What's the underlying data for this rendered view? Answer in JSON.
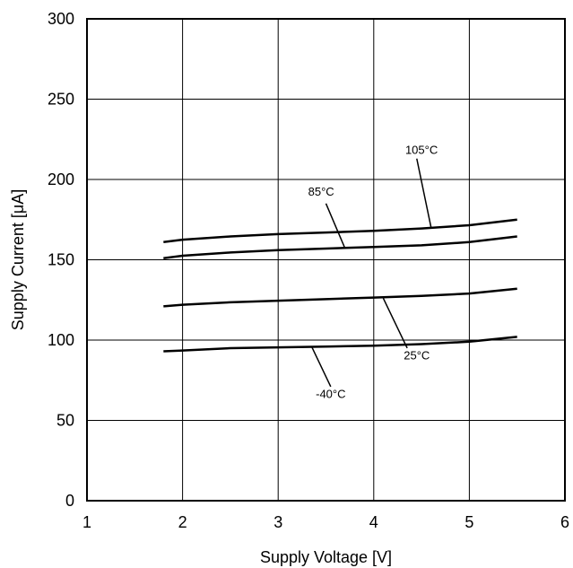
{
  "chart_data": {
    "type": "line",
    "title": "",
    "xlabel": "Supply Voltage [V]",
    "ylabel": "Supply Current [μA]",
    "xlim": [
      1,
      6
    ],
    "ylim": [
      0,
      300
    ],
    "xticks": [
      1,
      2,
      3,
      4,
      5,
      6
    ],
    "yticks": [
      0,
      50,
      100,
      150,
      200,
      250,
      300
    ],
    "xtick_labels": [
      "1",
      "2",
      "3",
      "4",
      "5",
      "6"
    ],
    "ytick_labels": [
      "0",
      "50",
      "100",
      "150",
      "200",
      "250",
      "300"
    ],
    "grid": true,
    "legend": "none (series labeled inline with leader lines)",
    "series": [
      {
        "name": "105°C",
        "x": [
          1.8,
          2.0,
          2.5,
          3.0,
          3.5,
          4.0,
          4.5,
          5.0,
          5.5
        ],
        "y": [
          161,
          162.5,
          164.5,
          166,
          167,
          168,
          169.5,
          171.5,
          175
        ]
      },
      {
        "name": "85°C",
        "x": [
          1.8,
          2.0,
          2.5,
          3.0,
          3.5,
          4.0,
          4.5,
          5.0,
          5.5
        ],
        "y": [
          151,
          152.5,
          154.5,
          156,
          157,
          158,
          159,
          161,
          164.5
        ]
      },
      {
        "name": "25°C",
        "x": [
          1.8,
          2.0,
          2.5,
          3.0,
          3.5,
          4.0,
          4.5,
          5.0,
          5.5
        ],
        "y": [
          121,
          122,
          123.5,
          124.5,
          125.5,
          126.5,
          127.5,
          129,
          132
        ]
      },
      {
        "name": "-40°C",
        "x": [
          1.8,
          2.0,
          2.5,
          3.0,
          3.5,
          4.0,
          4.5,
          5.0,
          5.5
        ],
        "y": [
          93,
          93.5,
          95,
          95.5,
          96,
          96.5,
          97.5,
          99,
          102
        ]
      }
    ]
  }
}
